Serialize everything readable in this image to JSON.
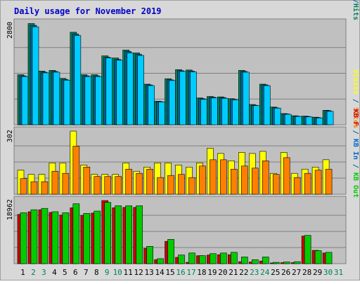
{
  "chart_data": [
    {
      "type": "bar",
      "title": "Daily usage for November 2019",
      "panel": "top",
      "ymax_label": "2800",
      "right_label": [
        {
          "text": "Pages",
          "color": "#00CCFF"
        },
        {
          "text": "/",
          "color": "#006699"
        },
        {
          "text": "Files",
          "color": "#006699"
        },
        {
          "text": "/",
          "color": "#006699"
        },
        {
          "text": "Hits",
          "color": "#00805C"
        }
      ],
      "ylim": [
        0,
        2800
      ],
      "categories": [
        "1",
        "2",
        "3",
        "4",
        "5",
        "6",
        "7",
        "8",
        "9",
        "10",
        "11",
        "12",
        "13",
        "14",
        "15",
        "16",
        "17",
        "18",
        "19",
        "20",
        "21",
        "22",
        "23",
        "24",
        "25",
        "26",
        "27",
        "28",
        "29",
        "30",
        "31"
      ],
      "series": [
        {
          "name": "Hits",
          "color": "#00805C",
          "values": [
            1380,
            2790,
            1480,
            1500,
            1280,
            2550,
            1380,
            1380,
            1900,
            1840,
            2060,
            1980,
            1120,
            650,
            1270,
            1520,
            1510,
            740,
            780,
            770,
            720,
            1500,
            560,
            1120,
            490,
            310,
            250,
            240,
            210,
            400,
            0
          ]
        },
        {
          "name": "Files",
          "color": "#006699",
          "values": [
            1350,
            2740,
            1450,
            1470,
            1250,
            2500,
            1350,
            1350,
            1860,
            1800,
            2020,
            1940,
            1100,
            640,
            1240,
            1490,
            1480,
            720,
            760,
            750,
            700,
            1470,
            540,
            1100,
            470,
            300,
            240,
            230,
            200,
            390,
            0
          ]
        },
        {
          "name": "Pages",
          "color": "#00CCFF",
          "values": [
            1330,
            2700,
            1430,
            1450,
            1230,
            2460,
            1330,
            1330,
            1840,
            1780,
            1980,
            1910,
            1080,
            630,
            1220,
            1470,
            1460,
            700,
            740,
            730,
            690,
            1450,
            530,
            1080,
            460,
            290,
            230,
            220,
            190,
            370,
            0
          ]
        }
      ],
      "weekend_days": [
        "2",
        "3",
        "9",
        "10",
        "16",
        "17",
        "23",
        "24",
        "30",
        "31"
      ]
    },
    {
      "type": "bar",
      "panel": "middle",
      "ymax_label": "302",
      "right_label": [
        {
          "text": "Visits",
          "color": "#FFFF00"
        },
        {
          "text": " / ",
          "color": "#006699"
        },
        {
          "text": "Sites",
          "color": "#FF8000"
        }
      ],
      "ylim": [
        0,
        302
      ],
      "categories": [
        "1",
        "2",
        "3",
        "4",
        "5",
        "6",
        "7",
        "8",
        "9",
        "10",
        "11",
        "12",
        "13",
        "14",
        "15",
        "16",
        "17",
        "18",
        "19",
        "20",
        "21",
        "22",
        "23",
        "24",
        "25",
        "26",
        "27",
        "28",
        "29",
        "30",
        "31"
      ],
      "series": [
        {
          "name": "Visits",
          "color": "#FFFF00",
          "values": [
            115,
            95,
            95,
            150,
            150,
            302,
            140,
            95,
            95,
            95,
            150,
            110,
            130,
            150,
            150,
            140,
            130,
            150,
            220,
            195,
            160,
            200,
            195,
            205,
            100,
            200,
            100,
            120,
            130,
            165,
            0
          ]
        },
        {
          "name": "Sites",
          "color": "#FF8000",
          "values": [
            75,
            60,
            60,
            110,
            100,
            230,
            130,
            85,
            85,
            85,
            120,
            100,
            120,
            80,
            90,
            95,
            80,
            135,
            165,
            165,
            120,
            135,
            125,
            160,
            95,
            175,
            80,
            100,
            115,
            120,
            0
          ]
        }
      ]
    },
    {
      "type": "bar",
      "panel": "bottom",
      "ymax_label": "18962",
      "right_label": [
        {
          "text": "KB F",
          "color": "#CC0000"
        },
        {
          "text": " / ",
          "color": "#006699"
        },
        {
          "text": "KB In",
          "color": "#0066CC"
        },
        {
          "text": " / ",
          "color": "#006699"
        },
        {
          "text": "KB Out",
          "color": "#00CC00"
        }
      ],
      "ylim": [
        0,
        18962
      ],
      "categories": [
        "1",
        "2",
        "3",
        "4",
        "5",
        "6",
        "7",
        "8",
        "9",
        "10",
        "11",
        "12",
        "13",
        "14",
        "15",
        "16",
        "17",
        "18",
        "19",
        "20",
        "21",
        "22",
        "23",
        "24",
        "25",
        "26",
        "27",
        "28",
        "29",
        "30",
        "31"
      ],
      "series": [
        {
          "name": "KB F",
          "color": "#CC0000",
          "values": [
            14800,
            15600,
            16200,
            15400,
            14600,
            16800,
            14500,
            15200,
            18962,
            16800,
            16900,
            16900,
            4600,
            1200,
            6700,
            1900,
            400,
            2400,
            2600,
            2700,
            2700,
            600,
            500,
            800,
            200,
            300,
            300,
            8300,
            4000,
            3200,
            0
          ]
        },
        {
          "name": "KB Out",
          "color": "#00CC00",
          "values": [
            15300,
            16200,
            16600,
            15600,
            15300,
            18000,
            15100,
            15800,
            18400,
            17400,
            17400,
            17400,
            5200,
            1500,
            7300,
            2600,
            3200,
            2400,
            3000,
            3200,
            3400,
            2000,
            1200,
            2000,
            400,
            500,
            600,
            8500,
            3900,
            3400,
            0
          ]
        }
      ]
    }
  ]
}
